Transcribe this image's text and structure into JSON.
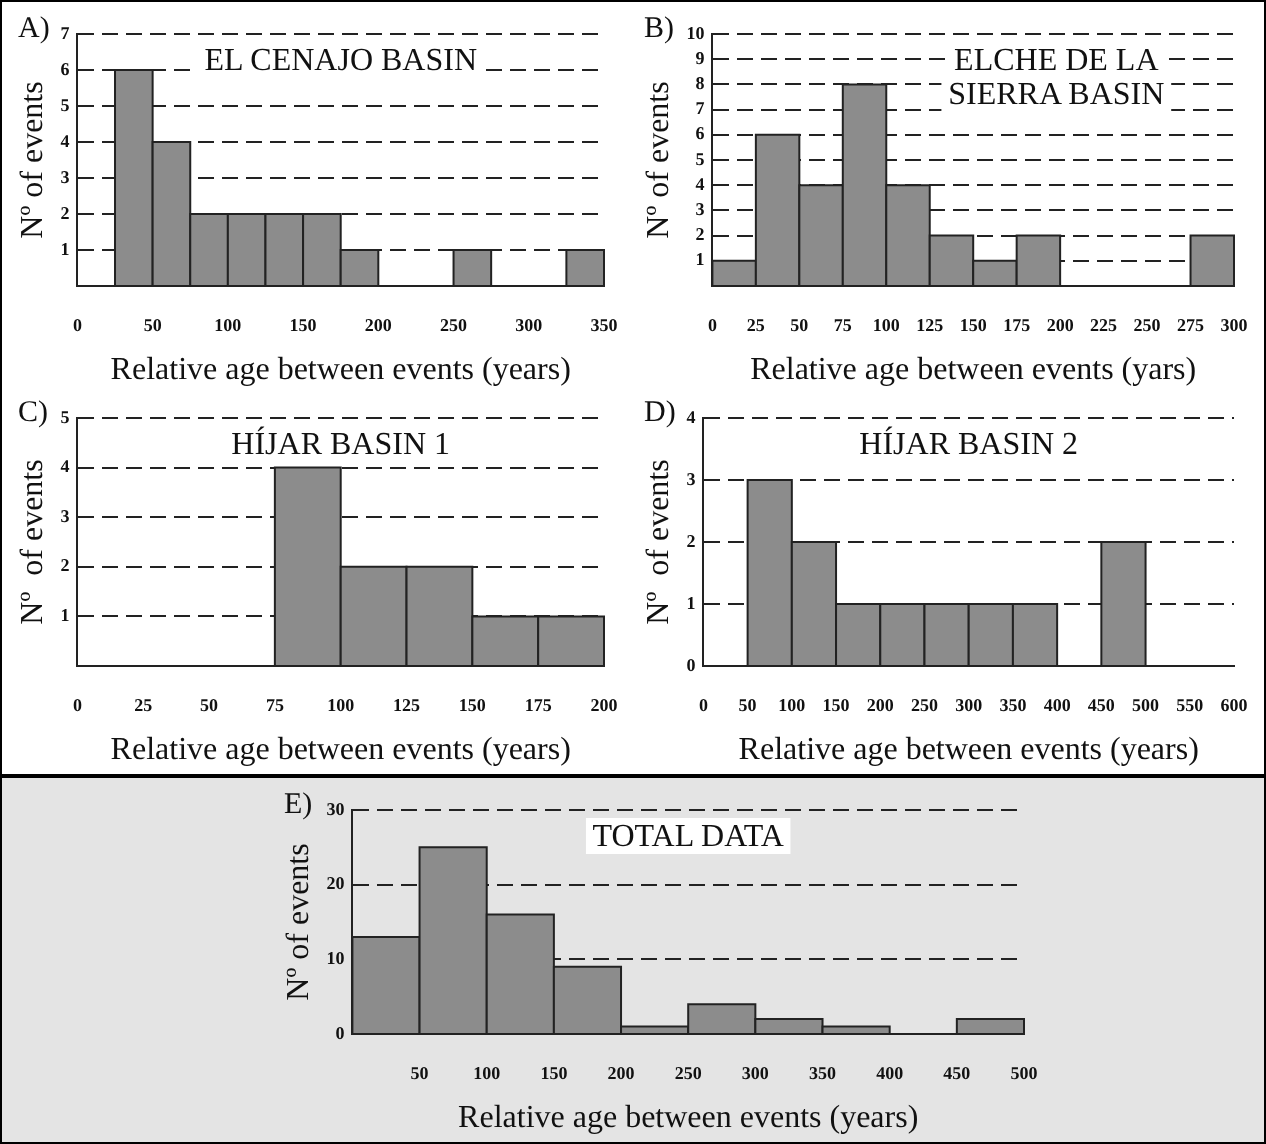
{
  "chart_data": [
    {
      "type": "histogram",
      "title": "EL CENAJO BASIN",
      "xlabel": "Relative age between events (years)",
      "ylabel": "Nº of events",
      "annotations": [
        "A)"
      ],
      "bins": [
        25,
        50,
        75,
        100,
        125,
        150,
        175,
        200,
        225,
        250,
        275,
        300,
        325,
        350
      ],
      "values": [
        6,
        4,
        2,
        2,
        2,
        2,
        1,
        0,
        0,
        1,
        0,
        0,
        1
      ],
      "color": "#8c8c8c",
      "xlim": [
        0,
        350
      ],
      "xticks": [
        0,
        50,
        100,
        150,
        200,
        250,
        300,
        350
      ],
      "ylim": [
        0,
        7
      ],
      "yticks": [
        1,
        2,
        3,
        4,
        5,
        6,
        7
      ],
      "grid": "y",
      "line_style": "dashed",
      "legend": false
    },
    {
      "type": "histogram",
      "title": "ELCHE DE LA SIERRA BASIN",
      "xlabel": "Relative age between events (yars)",
      "ylabel": "Nº of events",
      "annotations": [
        "B)"
      ],
      "bins": [
        0,
        25,
        50,
        75,
        100,
        125,
        150,
        175,
        200,
        225,
        250,
        275,
        300
      ],
      "values": [
        1,
        6,
        4,
        8,
        4,
        2,
        1,
        2,
        0,
        0,
        0,
        2
      ],
      "color": "#8c8c8c",
      "xlim": [
        0,
        300
      ],
      "xticks": [
        0,
        25,
        50,
        75,
        100,
        125,
        150,
        175,
        200,
        225,
        250,
        275,
        300
      ],
      "ylim": [
        0,
        10
      ],
      "yticks": [
        1,
        2,
        3,
        4,
        5,
        6,
        7,
        8,
        9,
        10
      ],
      "grid": "y",
      "line_style": "dashed",
      "legend": false
    },
    {
      "type": "histogram",
      "title": "HÍJAR BASIN 1",
      "xlabel": "Relative age between events (years)",
      "ylabel": "Nº  of events",
      "annotations": [
        "C)"
      ],
      "bins": [
        75,
        100,
        125,
        150,
        175,
        200
      ],
      "values": [
        4,
        2,
        2,
        1,
        1
      ],
      "color": "#8c8c8c",
      "xlim": [
        0,
        200
      ],
      "xticks": [
        0,
        25,
        50,
        75,
        100,
        125,
        150,
        175,
        200
      ],
      "ylim": [
        0,
        5
      ],
      "yticks": [
        1,
        2,
        3,
        4,
        5
      ],
      "grid": "y",
      "line_style": "dashed",
      "legend": false
    },
    {
      "type": "histogram",
      "title": "HÍJAR BASIN 2",
      "xlabel": "Relative age between events (years)",
      "ylabel": "Nº  of events",
      "annotations": [
        "D)"
      ],
      "bins": [
        50,
        100,
        150,
        200,
        250,
        300,
        350,
        400,
        450,
        500
      ],
      "values": [
        3,
        2,
        1,
        1,
        1,
        1,
        1,
        0,
        2
      ],
      "color": "#8c8c8c",
      "xlim": [
        0,
        600
      ],
      "xticks": [
        0,
        50,
        100,
        150,
        200,
        250,
        300,
        350,
        400,
        450,
        500,
        550,
        600
      ],
      "ylim": [
        0,
        4
      ],
      "yticks": [
        0,
        1,
        2,
        3,
        4
      ],
      "grid": "y",
      "line_style": "dashed",
      "legend": false
    },
    {
      "type": "histogram",
      "title": "TOTAL DATA",
      "xlabel": "Relative age between events (years)",
      "ylabel": "Nº of events",
      "annotations": [
        "E)"
      ],
      "bins": [
        0,
        50,
        100,
        150,
        200,
        250,
        300,
        350,
        400,
        450,
        500
      ],
      "values": [
        13,
        25,
        16,
        9,
        1,
        4,
        2,
        1,
        0,
        2
      ],
      "color": "#8c8c8c",
      "xlim": [
        0,
        500
      ],
      "xticks": [
        50,
        100,
        150,
        200,
        250,
        300,
        350,
        400,
        450,
        500
      ],
      "ylim": [
        0,
        30
      ],
      "yticks": [
        0,
        10,
        20,
        30
      ],
      "grid": "y",
      "line_style": "dashed",
      "legend": false
    }
  ]
}
